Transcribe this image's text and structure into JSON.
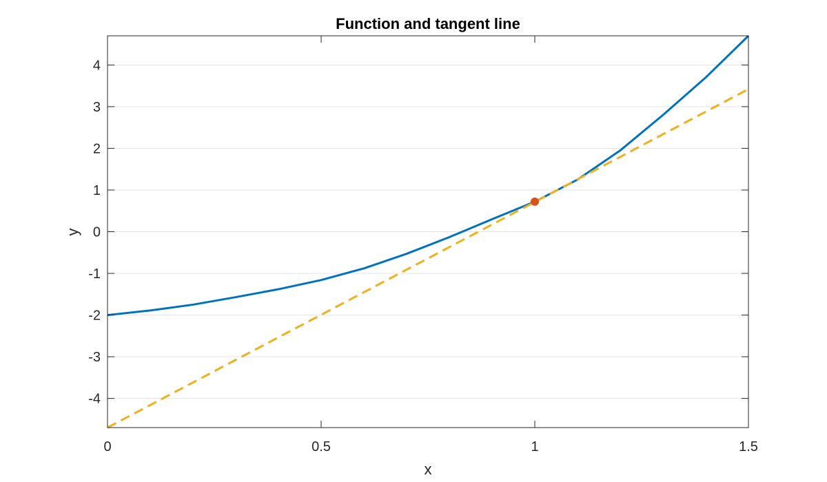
{
  "chart_data": {
    "type": "line",
    "title": "Function and tangent line",
    "xlabel": "x",
    "ylabel": "y",
    "xlim": [
      0,
      1.5
    ],
    "ylim": [
      -4.7,
      4.7
    ],
    "xticks": [
      0,
      0.5,
      1,
      1.5
    ],
    "xtick_labels": [
      "0",
      "0.5",
      "1",
      "1.5"
    ],
    "yticks": [
      -4,
      -3,
      -2,
      -1,
      0,
      1,
      2,
      3,
      4
    ],
    "ytick_labels": [
      "-4",
      "-3",
      "-2",
      "-1",
      "0",
      "1",
      "2",
      "3",
      "4"
    ],
    "grid": "horizontal",
    "series": [
      {
        "style": "solid",
        "color": "#0072BD",
        "x": [
          0,
          0.1,
          0.2,
          0.3,
          0.4,
          0.5,
          0.6,
          0.7,
          0.8,
          0.9,
          1.0,
          1.1,
          1.2,
          1.3,
          1.4,
          1.5
        ],
        "y": [
          -2.0,
          -1.89,
          -1.75,
          -1.57,
          -1.38,
          -1.16,
          -0.88,
          -0.53,
          -0.13,
          0.3,
          0.72,
          1.25,
          1.95,
          2.8,
          3.7,
          4.7
        ]
      },
      {
        "style": "dashed",
        "color": "#EDB120",
        "x": [
          0,
          1.5
        ],
        "y": [
          -4.7,
          3.42
        ]
      }
    ],
    "points": [
      {
        "x": 1.0,
        "y": 0.72,
        "color": "#D95319"
      }
    ]
  }
}
